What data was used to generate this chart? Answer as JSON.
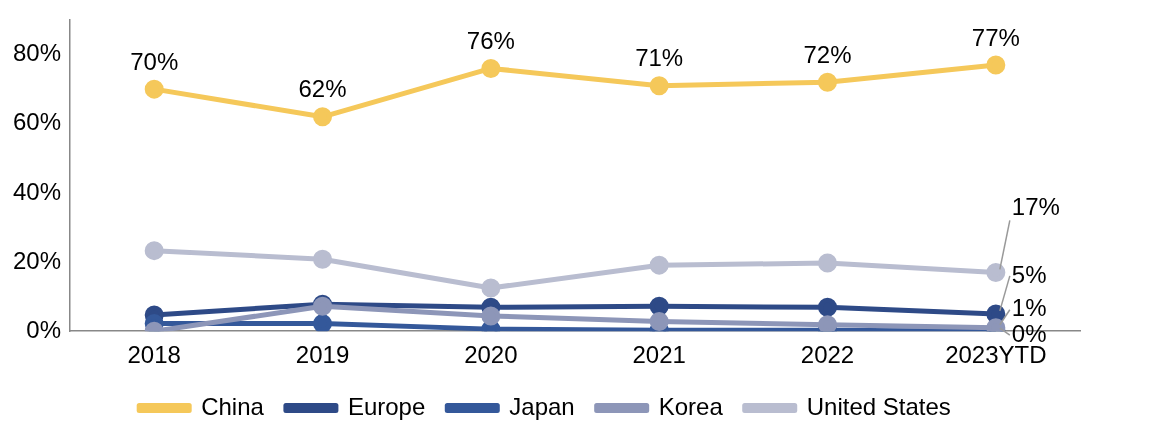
{
  "chart_data": {
    "type": "line",
    "categories": [
      "2018",
      "2019",
      "2020",
      "2021",
      "2022",
      "2023YTD"
    ],
    "series": [
      {
        "name": "China",
        "color": "#f5c85a",
        "values": [
          70,
          62,
          76,
          71,
          72,
          77
        ],
        "value_labels": [
          "70%",
          "62%",
          "76%",
          "71%",
          "72%",
          "77%"
        ]
      },
      {
        "name": "Europe",
        "color": "#2e4a87",
        "values": [
          4.7,
          7.8,
          6.9,
          7.2,
          6.9,
          5
        ],
        "value_labels": [
          null,
          null,
          null,
          null,
          null,
          "5%"
        ]
      },
      {
        "name": "Japan",
        "color": "#34589a",
        "values": [
          2.2,
          2.2,
          0.6,
          0.3,
          0.3,
          0
        ],
        "value_labels": [
          null,
          null,
          null,
          null,
          null,
          "0%"
        ]
      },
      {
        "name": "Korea",
        "color": "#8d96b8",
        "values": [
          0,
          7.2,
          4.4,
          2.8,
          1.9,
          1
        ],
        "value_labels": [
          null,
          null,
          null,
          null,
          null,
          "1%"
        ]
      },
      {
        "name": "United States",
        "color": "#b9bdd0",
        "values": [
          23.3,
          20.8,
          12.5,
          19.1,
          19.7,
          17
        ],
        "value_labels": [
          null,
          null,
          null,
          null,
          null,
          "17%"
        ]
      }
    ],
    "ylim": [
      0,
      90
    ],
    "yticks": [
      {
        "value": 0,
        "label": "0%"
      },
      {
        "value": 20,
        "label": "20%"
      },
      {
        "value": 40,
        "label": "40%"
      },
      {
        "value": 60,
        "label": "60%"
      },
      {
        "value": 80,
        "label": "80%"
      }
    ],
    "grid": false,
    "legend": "bottom",
    "marker": "circle",
    "line_style": "solid"
  }
}
